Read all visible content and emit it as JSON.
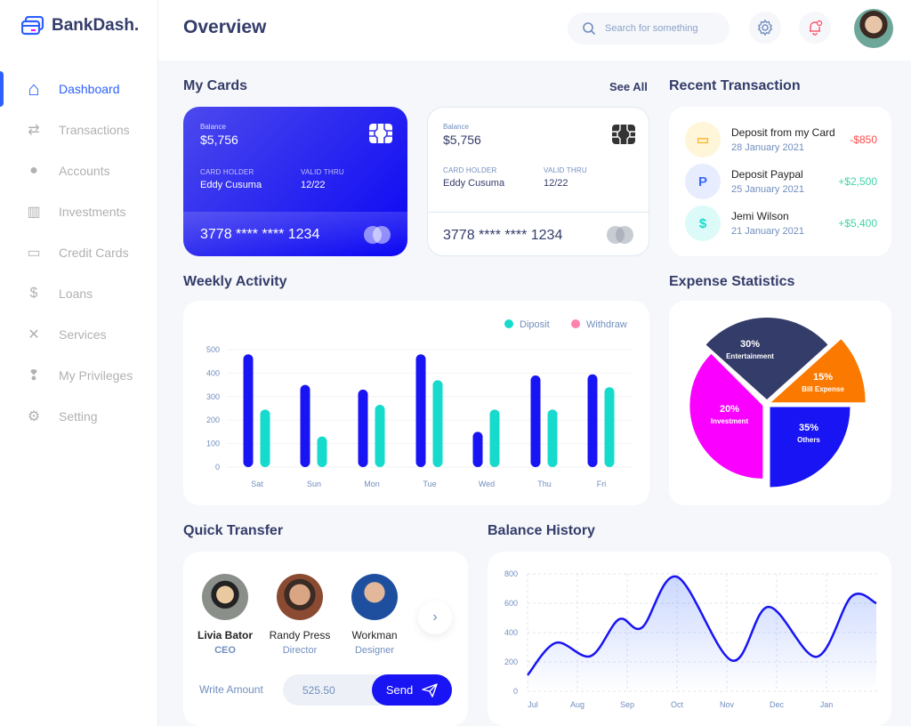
{
  "brand": {
    "name": "BankDash."
  },
  "sidebar": {
    "items": [
      {
        "label": "Dashboard",
        "icon": "home-icon",
        "active": true
      },
      {
        "label": "Transactions",
        "icon": "transfer-icon"
      },
      {
        "label": "Accounts",
        "icon": "user-icon"
      },
      {
        "label": "Investments",
        "icon": "investment-icon"
      },
      {
        "label": "Credit Cards",
        "icon": "credit-card-icon"
      },
      {
        "label": "Loans",
        "icon": "loan-icon"
      },
      {
        "label": "Services",
        "icon": "tools-icon"
      },
      {
        "label": "My Privileges",
        "icon": "lightbulb-icon"
      },
      {
        "label": "Setting",
        "icon": "gear-icon"
      }
    ]
  },
  "header": {
    "title": "Overview",
    "search_placeholder": "Search for something"
  },
  "my_cards": {
    "title": "My Cards",
    "see_all": "See All",
    "cards": [
      {
        "balance_label": "Balance",
        "balance": "$5,756",
        "holder_label": "CARD HOLDER",
        "holder": "Eddy Cusuma",
        "valid_label": "VALID THRU",
        "valid": "12/22",
        "number": "3778 **** **** 1234",
        "theme": "blue"
      },
      {
        "balance_label": "Balance",
        "balance": "$5,756",
        "holder_label": "CARD HOLDER",
        "holder": "Eddy Cusuma",
        "valid_label": "VALID THRU",
        "valid": "12/22",
        "number": "3778 **** **** 1234",
        "theme": "white"
      }
    ]
  },
  "recent": {
    "title": "Recent Transaction",
    "items": [
      {
        "title": "Deposit from my Card",
        "date": "28 January 2021",
        "amount": "-$850",
        "color": "#ff4b4a",
        "icon": "card-icon",
        "bg": "#fff5d9"
      },
      {
        "title": "Deposit Paypal",
        "date": "25 January 2021",
        "amount": "+$2,500",
        "color": "#41d4a8",
        "icon": "paypal-icon",
        "bg": "#e7edff"
      },
      {
        "title": "Jemi Wilson",
        "date": "21 January 2021",
        "amount": "+$5,400",
        "color": "#41d4a8",
        "icon": "coin-icon",
        "bg": "#dcfaf8"
      }
    ]
  },
  "weekly": {
    "title": "Weekly Activity"
  },
  "expense": {
    "title": "Expense Statistics"
  },
  "quick": {
    "title": "Quick Transfer",
    "people": [
      {
        "name": "Livia Bator",
        "role": "CEO"
      },
      {
        "name": "Randy Press",
        "role": "Director"
      },
      {
        "name": "Workman",
        "role": "Designer"
      }
    ],
    "amount_label": "Write Amount",
    "amount": "525.50",
    "send": "Send"
  },
  "balance": {
    "title": "Balance History"
  },
  "chart_data": [
    {
      "type": "bar",
      "title": "Weekly Activity",
      "categories": [
        "Sat",
        "Sun",
        "Mon",
        "Tue",
        "Wed",
        "Thu",
        "Fri"
      ],
      "series": [
        {
          "name": "Withdraw",
          "color": "#1814f3",
          "legend_color": "#ff82ac",
          "values": [
            480,
            350,
            330,
            480,
            150,
            390,
            395
          ]
        },
        {
          "name": "Diposit",
          "color": "#16dbcc",
          "legend_color": "#16dbcc",
          "values": [
            245,
            130,
            265,
            370,
            245,
            245,
            340
          ]
        }
      ],
      "yticks": [
        0,
        100,
        200,
        300,
        400,
        500
      ],
      "ylim": [
        0,
        500
      ],
      "grid": true,
      "legend": "top-right"
    },
    {
      "type": "pie",
      "title": "Expense Statistics",
      "slices": [
        {
          "label": "Entertainment",
          "value": 30,
          "color": "#343c6a"
        },
        {
          "label": "Bill Expense",
          "value": 15,
          "color": "#fc7900"
        },
        {
          "label": "Others",
          "value": 35,
          "color": "#1814f3"
        },
        {
          "label": "Investment",
          "value": 20,
          "color": "#fa00ff"
        }
      ]
    },
    {
      "type": "area",
      "title": "Balance History",
      "xticks": [
        "Jul",
        "Aug",
        "Sep",
        "Oct",
        "Nov",
        "Dec",
        "Jan"
      ],
      "yticks": [
        0,
        200,
        400,
        600,
        800
      ],
      "ylim": [
        0,
        800
      ],
      "grid": true,
      "color": "#1814f3",
      "points": [
        [
          "2020-07-01",
          110
        ],
        [
          "2020-07-18",
          330
        ],
        [
          "2020-08-09",
          240
        ],
        [
          "2020-08-26",
          490
        ],
        [
          "2020-09-10",
          435
        ],
        [
          "2020-10-01",
          780
        ],
        [
          "2020-11-04",
          210
        ],
        [
          "2020-11-26",
          575
        ],
        [
          "2020-12-25",
          235
        ],
        [
          "2021-01-16",
          645
        ],
        [
          "2021-01-31",
          600
        ]
      ]
    }
  ]
}
